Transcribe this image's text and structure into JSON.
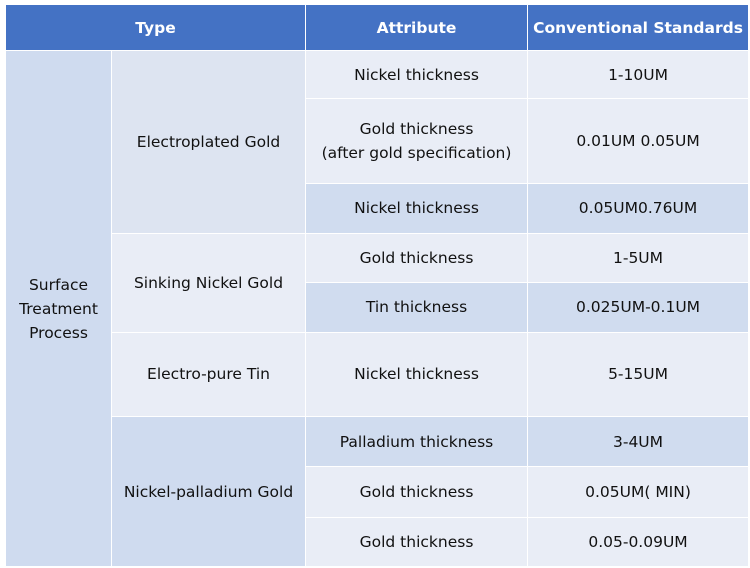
{
  "header": {
    "type": "Type",
    "attribute": "Attribute",
    "standards": "Conventional Standards"
  },
  "process_label": "Surface\nTreatment\nProcess",
  "groups": [
    {
      "name": "Electroplated Gold",
      "rows": [
        {
          "attribute": "Nickel thickness",
          "standard": "1-10UM"
        },
        {
          "attribute": "Gold thickness\n(after gold specification)",
          "standard": "0.01UM 0.05UM"
        },
        {
          "attribute": "Nickel thickness",
          "standard": "0.05UM0.76UM"
        }
      ]
    },
    {
      "name": "Sinking Nickel Gold",
      "rows": [
        {
          "attribute": "Gold thickness",
          "standard": "1-5UM"
        },
        {
          "attribute": "Tin thickness",
          "standard": "0.025UM-0.1UM"
        }
      ]
    },
    {
      "name": "Electro-pure Tin",
      "rows": [
        {
          "attribute": "Nickel thickness",
          "standard": "5-15UM"
        }
      ]
    },
    {
      "name": "Nickel-palladium Gold",
      "rows": [
        {
          "attribute": "Palladium thickness",
          "standard": "3-4UM"
        },
        {
          "attribute": "Gold thickness",
          "standard": "0.05UM( MIN)"
        },
        {
          "attribute": "Gold thickness",
          "standard": "0.05-0.09UM"
        }
      ]
    }
  ]
}
